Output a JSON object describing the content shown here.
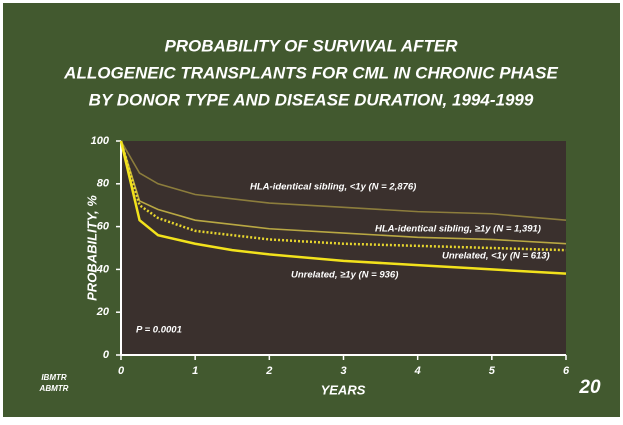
{
  "chart_data": {
    "type": "line",
    "title": [
      "PROBABILITY OF SURVIVAL AFTER",
      "ALLOGENEIC TRANSPLANTS FOR CML IN CHRONIC PHASE",
      "BY DONOR TYPE AND DISEASE DURATION, 1994-1999"
    ],
    "x_label": "YEARS",
    "y_label": "PROBABILITY, %",
    "x": [
      0,
      0.25,
      0.5,
      1,
      1.5,
      2,
      3,
      4,
      5,
      6
    ],
    "series": [
      {
        "name": "HLA-identical sibling, <1y (N = 2,876)",
        "color": "#8c7d3c",
        "style": "solid",
        "values": [
          100,
          85,
          80,
          75,
          73,
          71,
          69,
          67,
          66,
          63
        ]
      },
      {
        "name": "HLA-identical sibling, ≥1y (N = 1,391)",
        "color": "#b9a843",
        "style": "solid",
        "values": [
          100,
          72,
          68,
          63,
          61,
          59,
          57,
          55,
          54,
          52
        ]
      },
      {
        "name": "Unrelated, <1y (N = 613)",
        "color": "#e6d52e",
        "style": "dotted",
        "values": [
          100,
          70,
          64,
          58,
          56,
          54,
          52,
          51,
          50,
          49
        ]
      },
      {
        "name": "Unrelated, ≥1y (N = 936)",
        "color": "#f2e21c",
        "style": "solid",
        "values": [
          100,
          63,
          56,
          52,
          49,
          47,
          44,
          42,
          40,
          38
        ]
      }
    ],
    "annotations": [
      "P = 0.0001"
    ],
    "xlim": [
      0,
      6
    ],
    "ylim": [
      0,
      100
    ],
    "xticks": [
      0,
      1,
      2,
      3,
      4,
      5,
      6
    ],
    "yticks": [
      0,
      20,
      40,
      60,
      80,
      100
    ]
  },
  "logo": [
    "IBMTR",
    "ABMTR"
  ],
  "page_number": "20"
}
